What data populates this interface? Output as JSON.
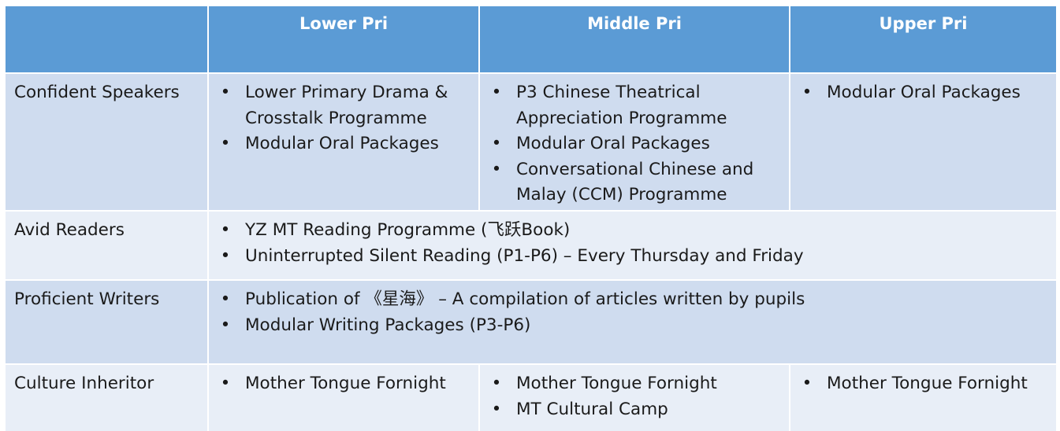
{
  "table": {
    "headers": [
      "",
      "Lower Pri",
      "Middle Pri",
      "Upper Pri"
    ],
    "rows": [
      {
        "label": "Confident Speakers",
        "lower": [
          "Lower Primary Drama & Crosstalk Programme",
          "Modular Oral Packages"
        ],
        "middle": [
          "P3 Chinese Theatrical Appreciation Programme",
          "Modular Oral Packages",
          "Conversational Chinese and Malay (CCM) Programme"
        ],
        "upper": [
          "Modular Oral Packages"
        ]
      },
      {
        "label": "Avid Readers",
        "all": [
          "YZ MT Reading Programme (飞跃Book)",
          "Uninterrupted Silent Reading (P1-P6) – Every Thursday and Friday"
        ]
      },
      {
        "label": "Proficient Writers",
        "all": [
          "Publication of 《星海》 – A compilation of articles written by pupils",
          "Modular Writing Packages (P3-P6)"
        ]
      },
      {
        "label": "Culture Inheritor",
        "lower": [
          "Mother Tongue Fornight"
        ],
        "middle": [
          "Mother Tongue Fornight",
          "MT Cultural Camp"
        ],
        "upper": [
          "Mother Tongue Fornight"
        ]
      }
    ]
  }
}
